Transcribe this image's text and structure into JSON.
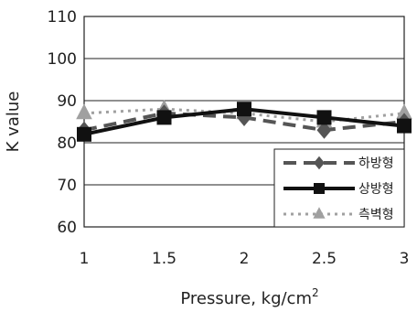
{
  "chart_data": {
    "type": "line",
    "title": "",
    "xlabel": "Pressure, kg/cm",
    "xlabel_sup": "2",
    "ylabel": "K value",
    "x": [
      1,
      1.5,
      2,
      2.5,
      3
    ],
    "x_tick_labels": [
      "1",
      "1.5",
      "2",
      "2.5",
      "3"
    ],
    "ylim": [
      60,
      110
    ],
    "yticks": [
      60,
      70,
      80,
      90,
      100,
      110
    ],
    "grid": "horizontal",
    "legend_position": "bottom-right",
    "series": [
      {
        "name": "하방형",
        "marker": "diamond",
        "line": "dashed",
        "color": "#555555",
        "values": [
          83,
          87,
          86,
          83,
          85
        ]
      },
      {
        "name": "상방형",
        "marker": "square",
        "line": "solid",
        "color": "#111111",
        "values": [
          82,
          86,
          88,
          86,
          84
        ]
      },
      {
        "name": "측벽형",
        "marker": "triangle",
        "line": "dotted",
        "color": "#a0a0a0",
        "values": [
          87,
          88,
          87,
          85,
          87
        ]
      }
    ]
  }
}
